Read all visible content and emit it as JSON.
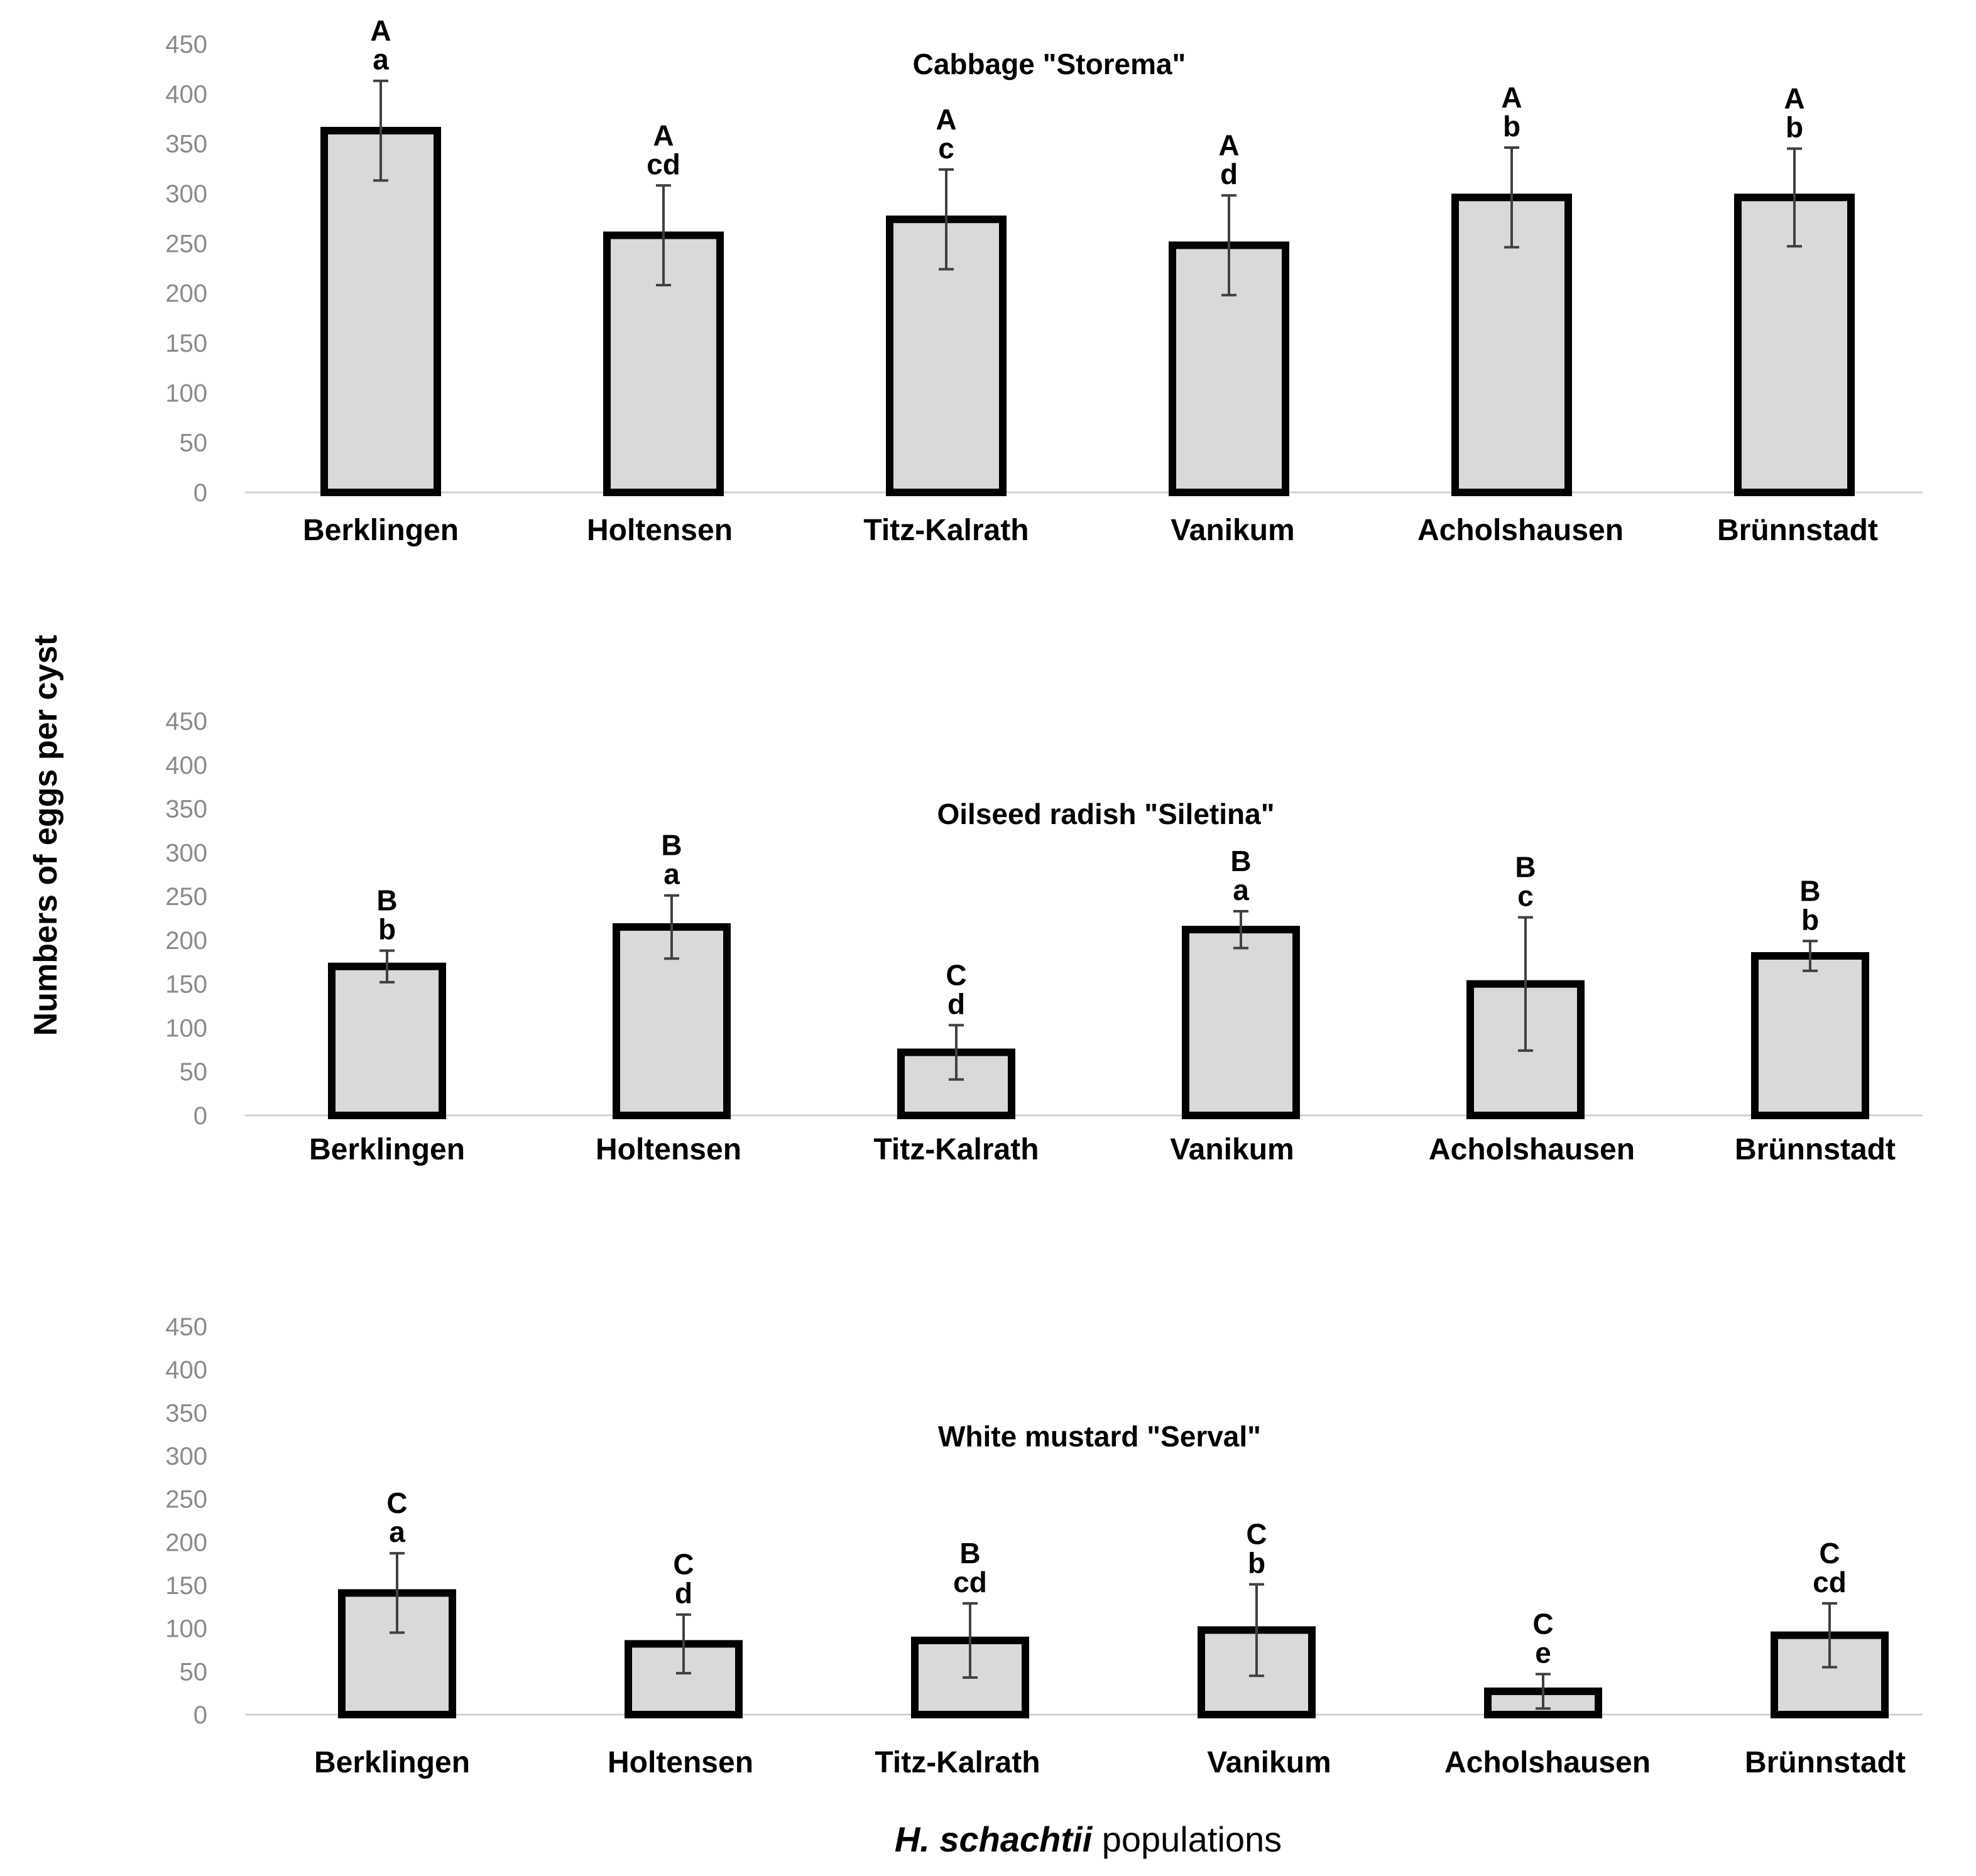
{
  "figure": {
    "ylabel": "Numbers of eggs per cyst",
    "xlabel_italic": "H. schachtii",
    "xlabel_rest": " populations"
  },
  "chart_data": [
    {
      "type": "bar",
      "title": "Cabbage \"Storema\"",
      "categories": [
        "Berklingen",
        "Holtensen",
        "Titz-Kalrath",
        "Vanikum",
        "Acholshausen",
        "Brünnstadt"
      ],
      "values": [
        363,
        258,
        274,
        248,
        296,
        296
      ],
      "errors": [
        50,
        50,
        50,
        50,
        50,
        49
      ],
      "upper_letters": [
        "A",
        "A",
        "A",
        "A",
        "A",
        "A"
      ],
      "lower_letters": [
        "a",
        "cd",
        "c",
        "d",
        "b",
        "b"
      ],
      "ylim": [
        0,
        450
      ],
      "yticks": [
        0,
        50,
        100,
        150,
        200,
        250,
        300,
        350,
        400,
        450
      ]
    },
    {
      "type": "bar",
      "title": "Oilseed radish \"Siletina\"",
      "categories": [
        "Berklingen",
        "Holtensen",
        "Titz-Kalrath",
        "Vanikum",
        "Acholshausen",
        "Brünnstadt"
      ],
      "values": [
        170,
        215,
        72,
        212,
        150,
        182
      ],
      "errors": [
        18,
        36,
        31,
        21,
        76,
        17
      ],
      "upper_letters": [
        "B",
        "B",
        "C",
        "B",
        "B",
        "B"
      ],
      "lower_letters": [
        "b",
        "a",
        "d",
        "a",
        "c",
        "b"
      ],
      "ylim": [
        0,
        450
      ],
      "yticks": [
        0,
        50,
        100,
        150,
        200,
        250,
        300,
        350,
        400,
        450
      ]
    },
    {
      "type": "bar",
      "title": "White mustard \"Serval\"",
      "categories": [
        "Berklingen",
        "Holtensen",
        "Titz-Kalrath",
        "Vanikum",
        "Acholshausen",
        "Brünnstadt"
      ],
      "values": [
        141,
        82,
        86,
        98,
        27,
        92
      ],
      "errors": [
        46,
        34,
        43,
        53,
        20,
        37
      ],
      "upper_letters": [
        "C",
        "C",
        "B",
        "C",
        "C",
        "C"
      ],
      "lower_letters": [
        "a",
        "d",
        "cd",
        "b",
        "e",
        "cd"
      ],
      "ylim": [
        0,
        450
      ],
      "yticks": [
        0,
        50,
        100,
        150,
        200,
        250,
        300,
        350,
        400,
        450
      ]
    }
  ]
}
